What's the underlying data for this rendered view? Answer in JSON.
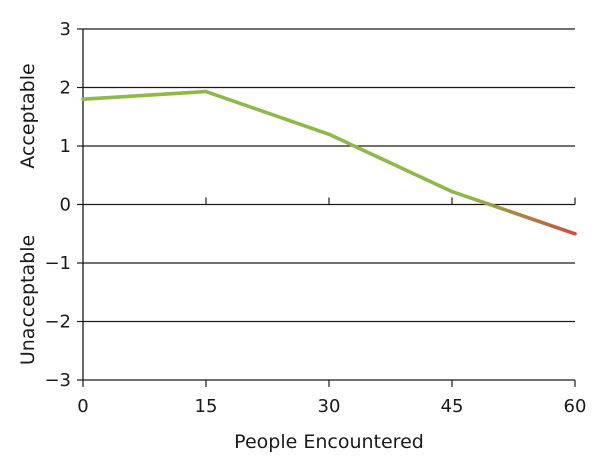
{
  "chart_data": {
    "type": "line",
    "xlabel": "People Encountered",
    "ylabel_upper": "Acceptable",
    "ylabel_lower": "Unacceptable",
    "xlim": [
      0,
      60
    ],
    "ylim": [
      -3,
      3
    ],
    "x_ticks": [
      0,
      15,
      30,
      45,
      60
    ],
    "x_tick_labels": [
      "0",
      "15",
      "30",
      "45",
      "60"
    ],
    "y_ticks": [
      3,
      2,
      1,
      0,
      -1,
      -2,
      -3
    ],
    "y_tick_labels": [
      "3",
      "2",
      "1",
      "0",
      "−1",
      "−2",
      "−3"
    ],
    "grid": true,
    "series": [
      {
        "x": [
          0,
          15,
          30,
          45,
          60
        ],
        "y": [
          1.8,
          1.93,
          1.2,
          0.22,
          -0.5
        ]
      }
    ],
    "colors": {
      "line_positive": "#8fb84a",
      "line_negative": "#c9503c",
      "grid": "#1a1a1a",
      "axis": "#1a1a1a"
    }
  }
}
